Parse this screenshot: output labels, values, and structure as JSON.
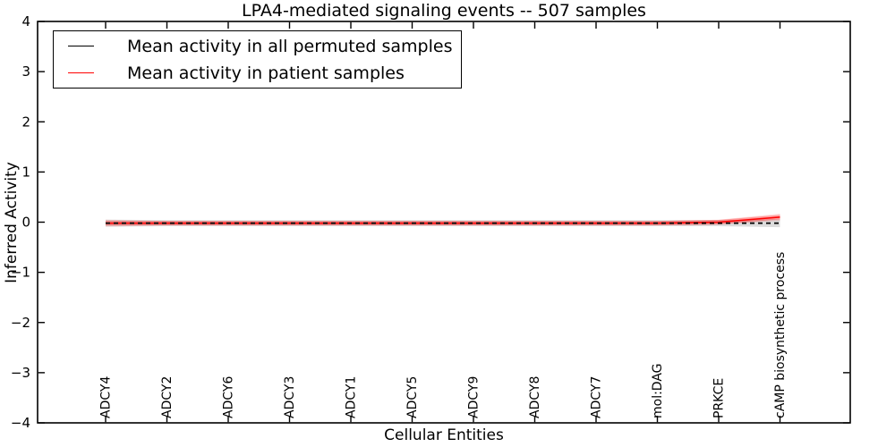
{
  "chart_data": {
    "type": "line",
    "title": "LPA4-mediated signaling events -- 507 samples",
    "xlabel": "Cellular Entities",
    "ylabel": "Inferred Activity",
    "ylim": [
      -4,
      4
    ],
    "grid": false,
    "legend_position": "upper left",
    "yticks": [
      {
        "value": 4,
        "label": "4"
      },
      {
        "value": 3,
        "label": "3"
      },
      {
        "value": 2,
        "label": "2"
      },
      {
        "value": 1,
        "label": "1"
      },
      {
        "value": 0,
        "label": "0"
      },
      {
        "value": -1,
        "label": "−1"
      },
      {
        "value": -2,
        "label": "−2"
      },
      {
        "value": -3,
        "label": "−3"
      },
      {
        "value": -4,
        "label": "−4"
      }
    ],
    "categories": [
      "ADCY4",
      "ADCY2",
      "ADCY6",
      "ADCY3",
      "ADCY1",
      "ADCY5",
      "ADCY9",
      "ADCY8",
      "ADCY7",
      "mol:DAG",
      "PRKCE",
      "cAMP biosynthetic process"
    ],
    "series": [
      {
        "name": "Mean activity in all permuted samples",
        "color": "#000000",
        "style": "dashed",
        "values": [
          -0.02,
          -0.02,
          -0.02,
          -0.02,
          -0.02,
          -0.02,
          -0.02,
          -0.02,
          -0.02,
          -0.02,
          -0.02,
          -0.02
        ],
        "band_upper": [
          0.05,
          0.04,
          0.04,
          0.04,
          0.04,
          0.04,
          0.04,
          0.04,
          0.04,
          0.04,
          0.04,
          0.06
        ],
        "band_lower": [
          -0.09,
          -0.08,
          -0.08,
          -0.08,
          -0.08,
          -0.08,
          -0.08,
          -0.08,
          -0.08,
          -0.08,
          -0.08,
          -0.1
        ],
        "band_color": "rgba(130,130,130,0.28)"
      },
      {
        "name": "Mean activity in patient samples",
        "color": "#ff0000",
        "style": "solid",
        "values": [
          -0.02,
          -0.02,
          -0.02,
          -0.02,
          -0.02,
          -0.02,
          -0.02,
          -0.02,
          -0.02,
          -0.02,
          0.0,
          0.1
        ],
        "band_upper": [
          0.05,
          0.02,
          0.02,
          0.02,
          0.02,
          0.02,
          0.02,
          0.02,
          0.02,
          0.02,
          0.05,
          0.17
        ],
        "band_lower": [
          -0.09,
          -0.06,
          -0.06,
          -0.06,
          -0.06,
          -0.06,
          -0.06,
          -0.06,
          -0.06,
          -0.06,
          -0.05,
          0.03
        ],
        "band_color": "rgba(255,0,0,0.13)"
      }
    ]
  }
}
